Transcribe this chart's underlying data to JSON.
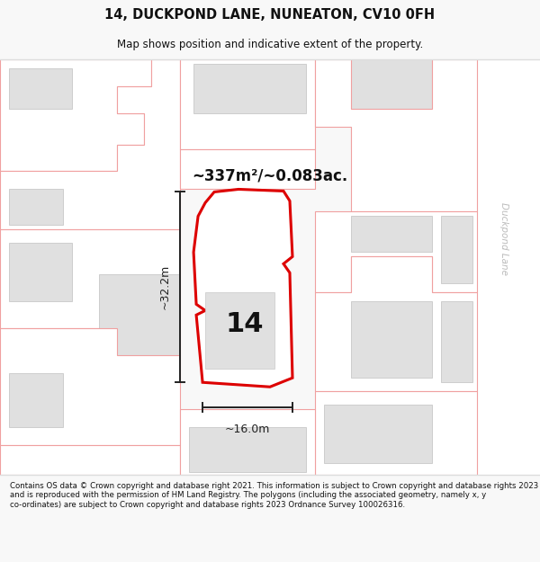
{
  "title_line1": "14, DUCKPOND LANE, NUNEATON, CV10 0FH",
  "title_line2": "Map shows position and indicative extent of the property.",
  "area_text": "~337m²/~0.083ac.",
  "dim_height": "~32.2m",
  "dim_width": "~16.0m",
  "label_number": "14",
  "street_label": "Duckpond Lane",
  "footer_text": "Contains OS data © Crown copyright and database right 2021. This information is subject to Crown copyright and database rights 2023 and is reproduced with the permission of HM Land Registry. The polygons (including the associated geometry, namely x, y co-ordinates) are subject to Crown copyright and database rights 2023 Ordnance Survey 100026316.",
  "bg_color": "#f8f8f8",
  "map_bg": "#ffffff",
  "plot_fill": "#ffffff",
  "plot_edge": "#dd0000",
  "building_fill": "#e0e0e0",
  "building_edge": "#f0a0a0",
  "dim_color": "#222222",
  "title_color": "#111111",
  "street_label_color": "#bbbbbb",
  "footer_color": "#111111"
}
